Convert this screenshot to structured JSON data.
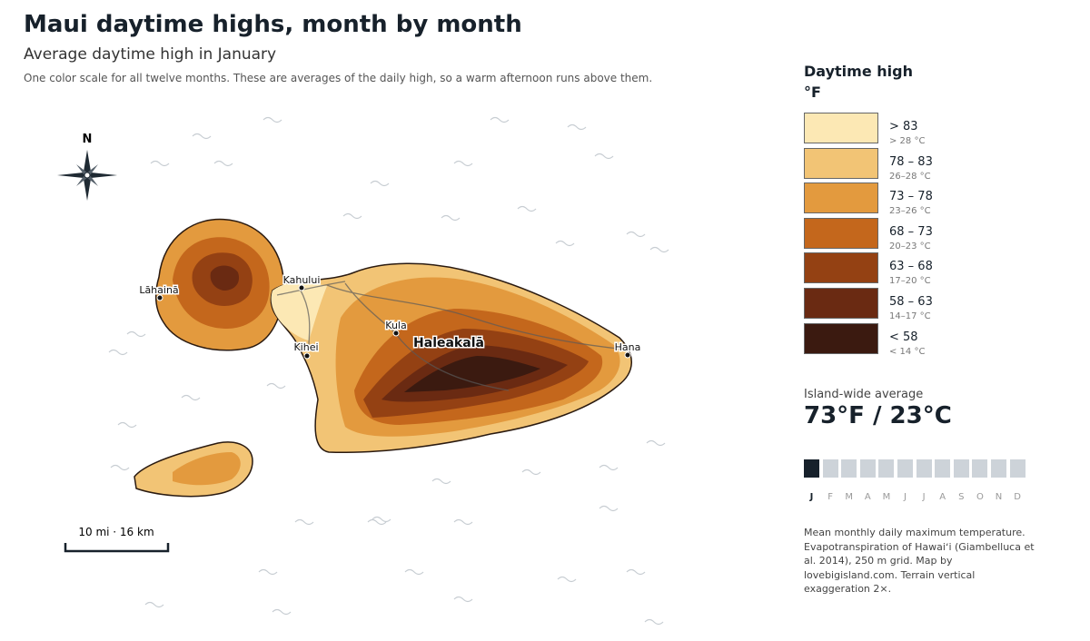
{
  "header": {
    "title": "Maui daytime highs, month by month",
    "subtitle": "Average daytime high in January",
    "note": "One color scale for all twelve months. These are averages of the daily high, so a warm afternoon runs above them."
  },
  "map": {
    "north": "N",
    "places": [
      {
        "label": "Lāhainā"
      },
      {
        "label": "Kahului"
      },
      {
        "label": "Kula"
      },
      {
        "label": "Haleakalā"
      },
      {
        "label": "Kihei"
      },
      {
        "label": "Hana"
      }
    ],
    "scale_bar": "10 mi · 16 km"
  },
  "legend": {
    "title": "Daytime high",
    "unit": "°F",
    "classes": [
      {
        "label": "> 83",
        "sub": "> 28 °C",
        "color": "#fce8b4"
      },
      {
        "label": "78 – 83",
        "sub": "26–28 °C",
        "color": "#f2c475"
      },
      {
        "label": "73 – 78",
        "sub": "23–26 °C",
        "color": "#e39a3e"
      },
      {
        "label": "68 – 73",
        "sub": "20–23 °C",
        "color": "#c4671c"
      },
      {
        "label": "63 – 68",
        "sub": "17–20 °C",
        "color": "#944113"
      },
      {
        "label": "58 – 63",
        "sub": "14–17 °C",
        "color": "#6a2a12"
      },
      {
        "label": "< 58",
        "sub": "< 14 °C",
        "color": "#3b1a10"
      }
    ]
  },
  "average": {
    "label": "Island-wide average",
    "value": "73°F / 23°C"
  },
  "months": {
    "labels": [
      "J",
      "F",
      "M",
      "A",
      "M",
      "J",
      "J",
      "A",
      "S",
      "O",
      "N",
      "D"
    ],
    "selected": 0
  },
  "source": "Mean monthly daily maximum temperature. Evapotranspiration of Hawaiʻi (Giambelluca et al. 2014), 250 m grid. Map by lovebigisland.com. Terrain vertical exaggeration 2×."
}
